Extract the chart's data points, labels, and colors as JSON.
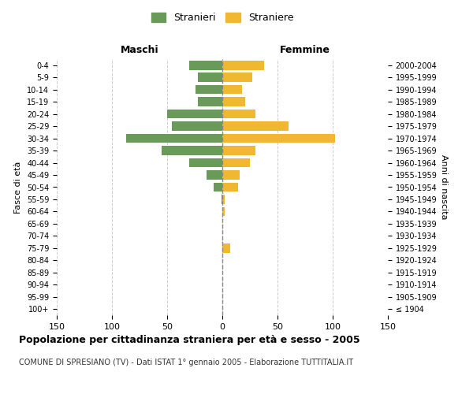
{
  "age_groups": [
    "100+",
    "95-99",
    "90-94",
    "85-89",
    "80-84",
    "75-79",
    "70-74",
    "65-69",
    "60-64",
    "55-59",
    "50-54",
    "45-49",
    "40-44",
    "35-39",
    "30-34",
    "25-29",
    "20-24",
    "15-19",
    "10-14",
    "5-9",
    "0-4"
  ],
  "birth_years": [
    "≤ 1904",
    "1905-1909",
    "1910-1914",
    "1915-1919",
    "1920-1924",
    "1925-1929",
    "1930-1934",
    "1935-1939",
    "1940-1944",
    "1945-1949",
    "1950-1954",
    "1955-1959",
    "1960-1964",
    "1965-1969",
    "1970-1974",
    "1975-1979",
    "1980-1984",
    "1985-1989",
    "1990-1994",
    "1995-1999",
    "2000-2004"
  ],
  "maschi": [
    0,
    0,
    0,
    0,
    0,
    0,
    0,
    0,
    0,
    1,
    8,
    14,
    30,
    55,
    87,
    46,
    50,
    22,
    24,
    22,
    30
  ],
  "femmine": [
    0,
    0,
    0,
    0,
    0,
    7,
    0,
    0,
    2,
    2,
    14,
    16,
    25,
    30,
    102,
    60,
    30,
    21,
    18,
    27,
    38
  ],
  "color_maschi": "#6a9a5a",
  "color_femmine": "#f0b830",
  "title": "Popolazione per cittadinanza straniera per età e sesso - 2005",
  "subtitle": "COMUNE DI SPRESIANO (TV) - Dati ISTAT 1° gennaio 2005 - Elaborazione TUTTITALIA.IT",
  "xlabel_maschi": "Maschi",
  "xlabel_femmine": "Femmine",
  "ylabel_left": "Fasce di età",
  "ylabel_right": "Anni di nascita",
  "legend_maschi": "Stranieri",
  "legend_femmine": "Straniere",
  "xlim": 150,
  "background_color": "#ffffff",
  "grid_color": "#cccccc"
}
